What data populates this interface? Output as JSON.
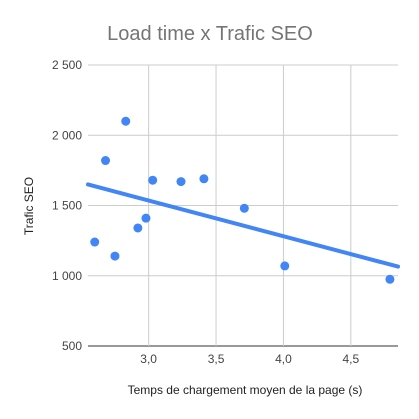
{
  "chart_data": {
    "type": "scatter",
    "title": "Load time x Trafic SEO",
    "xlabel": "Temps de chargement moyen de la page (s)",
    "ylabel": "Trafic SEO",
    "xlim": [
      2.55,
      4.85
    ],
    "ylim": [
      500,
      2500
    ],
    "x_ticks": [
      3.0,
      3.5,
      4.0,
      4.5
    ],
    "x_tick_labels": [
      "3,0",
      "3,5",
      "4,0",
      "4,5"
    ],
    "y_ticks": [
      500,
      1000,
      1500,
      2000,
      2500
    ],
    "y_tick_labels": [
      "500",
      "1 000",
      "1 500",
      "2 000",
      "2 500"
    ],
    "grid": true,
    "legend": "none",
    "series": [
      {
        "points": [
          {
            "x": 2.6,
            "y": 1240
          },
          {
            "x": 2.68,
            "y": 1820
          },
          {
            "x": 2.75,
            "y": 1140
          },
          {
            "x": 2.83,
            "y": 2100
          },
          {
            "x": 2.92,
            "y": 1340
          },
          {
            "x": 2.98,
            "y": 1410
          },
          {
            "x": 3.03,
            "y": 1680
          },
          {
            "x": 3.24,
            "y": 1670
          },
          {
            "x": 3.41,
            "y": 1690
          },
          {
            "x": 3.71,
            "y": 1480
          },
          {
            "x": 4.01,
            "y": 1070
          },
          {
            "x": 4.79,
            "y": 975
          }
        ],
        "color": "#4285f4"
      }
    ],
    "trendline": {
      "type": "linear",
      "from": {
        "x": 2.55,
        "y": 1650
      },
      "to": {
        "x": 4.85,
        "y": 1065
      },
      "color": "#4285f4"
    }
  }
}
